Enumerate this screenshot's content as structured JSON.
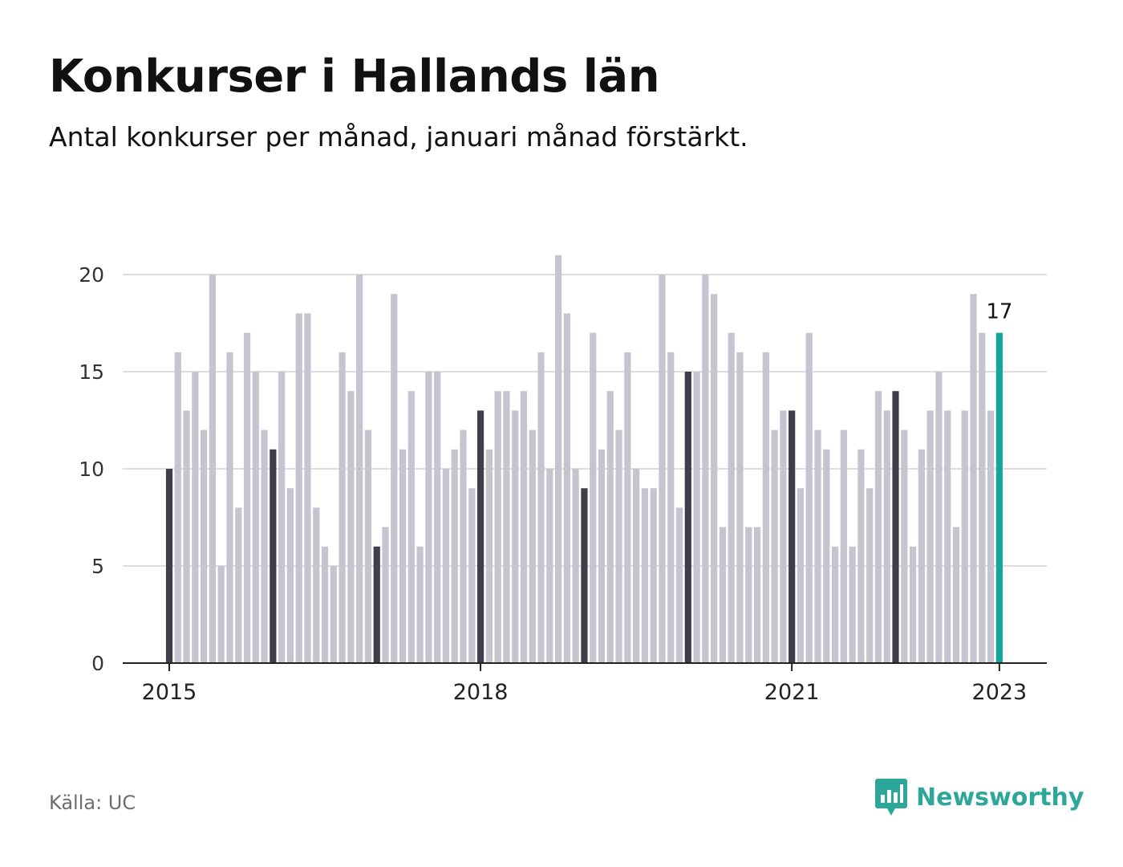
{
  "title": "Konkurser i Hallands län",
  "subtitle": "Antal konkurser per månad, januari månad förstärkt.",
  "source": "Källa: UC",
  "brand": {
    "name": "Newsworthy",
    "icon": "newsworthy-logo-icon",
    "color": "#2ea79b"
  },
  "colors": {
    "regular": "#c6c5cf",
    "january": "#3f3e4a",
    "latest": "#14a69a",
    "grid": "#dddddd",
    "axis": "#222222"
  },
  "chart_data": {
    "type": "bar",
    "start": "2015-01",
    "frequency": "monthly",
    "highlight": "January months",
    "x_ticks": [
      "2015",
      "2018",
      "2021",
      "2023"
    ],
    "y_ticks": [
      0,
      5,
      10,
      15,
      20
    ],
    "ylim": [
      0,
      22
    ],
    "grid": true,
    "last_value_label": "17",
    "values": [
      10,
      16,
      13,
      15,
      12,
      20,
      5,
      16,
      8,
      17,
      15,
      12,
      11,
      15,
      9,
      18,
      18,
      8,
      6,
      5,
      16,
      14,
      20,
      12,
      6,
      7,
      19,
      11,
      14,
      6,
      15,
      15,
      10,
      11,
      12,
      9,
      13,
      11,
      14,
      14,
      13,
      14,
      12,
      16,
      10,
      21,
      18,
      10,
      9,
      17,
      11,
      14,
      12,
      16,
      10,
      9,
      9,
      20,
      16,
      8,
      15,
      15,
      20,
      19,
      7,
      17,
      16,
      7,
      7,
      16,
      12,
      13,
      13,
      9,
      17,
      12,
      11,
      6,
      12,
      6,
      11,
      9,
      14,
      13,
      14,
      12,
      6,
      11,
      13,
      15,
      13,
      7,
      13,
      19,
      17,
      13,
      17
    ]
  }
}
